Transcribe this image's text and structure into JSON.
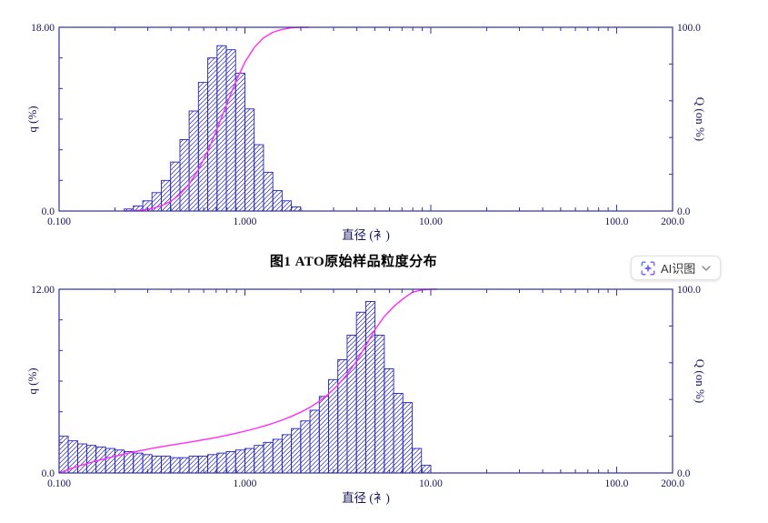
{
  "page": {
    "caption": "图1 ATO原始样品粒度分布",
    "ai_button": {
      "label": "AI识图",
      "icon": "ai-sparkle-scan-icon",
      "chevron": "chevron-down-icon"
    }
  },
  "colors": {
    "axis": "#3030a8",
    "bar": "#2424c0",
    "curve": "#ff2ef2",
    "text": "#14145a",
    "caption": "#000000",
    "ai_icon_start": "#3d7bfd",
    "ai_icon_end": "#a044ff"
  },
  "chart_data": [
    {
      "type": "bar",
      "subtype": "histogram-with-cumulative-curve",
      "title": "",
      "xlabel": "直径 (衤)",
      "ylabel_left": "q (%)",
      "ylabel_right": "Q (on %)",
      "x_scale": "log",
      "grid": false,
      "x_range": [
        0.1,
        200
      ],
      "y_left_range": [
        0,
        18
      ],
      "y_right_range": [
        0,
        100
      ],
      "y_left_minor_step": 3,
      "y_right_minor_step": 20,
      "x_tick_labels": [
        {
          "v": 0.1,
          "label": "0.100"
        },
        {
          "v": 1,
          "label": "1.000"
        },
        {
          "v": 10,
          "label": "10.00"
        },
        {
          "v": 100,
          "label": "100.0"
        },
        {
          "v": 200,
          "label": "200.0"
        }
      ],
      "y_left_tick_labels": [
        {
          "v": 18,
          "label": "18.00"
        },
        {
          "v": 0,
          "label": "0.0"
        }
      ],
      "y_right_tick_labels": [
        {
          "v": 100,
          "label": "100.0"
        },
        {
          "v": 0,
          "label": "0.0"
        }
      ],
      "bin_edges": [
        0.224,
        0.251,
        0.282,
        0.316,
        0.355,
        0.398,
        0.447,
        0.501,
        0.562,
        0.631,
        0.708,
        0.794,
        0.891,
        1.0,
        1.122,
        1.259,
        1.413,
        1.585,
        1.778,
        1.995
      ],
      "q_values": [
        0.2,
        0.5,
        1.0,
        1.8,
        3.0,
        4.8,
        7.0,
        9.8,
        12.6,
        15.0,
        16.2,
        15.8,
        13.5,
        10.0,
        6.5,
        3.8,
        2.0,
        1.0,
        0.4
      ],
      "cumulative": "computed-from-q-normalized-to-100",
      "curve_extend_to": 2.2
    },
    {
      "type": "bar",
      "subtype": "histogram-with-cumulative-curve",
      "title": "",
      "xlabel": "直径 (衤)",
      "ylabel_left": "q (%)",
      "ylabel_right": "Q (on %)",
      "x_scale": "log",
      "grid": false,
      "x_range": [
        0.1,
        200
      ],
      "y_left_range": [
        0,
        12
      ],
      "y_right_range": [
        0,
        100
      ],
      "y_left_minor_step": 2,
      "y_right_minor_step": 20,
      "x_tick_labels": [
        {
          "v": 0.1,
          "label": "0.100"
        },
        {
          "v": 1,
          "label": "1.000"
        },
        {
          "v": 10,
          "label": "10.00"
        },
        {
          "v": 100,
          "label": "100.0"
        },
        {
          "v": 200,
          "label": "200.0"
        }
      ],
      "y_left_tick_labels": [
        {
          "v": 12,
          "label": "12.00"
        },
        {
          "v": 0,
          "label": "0.0"
        }
      ],
      "y_right_tick_labels": [
        {
          "v": 100,
          "label": "100.0"
        },
        {
          "v": 0,
          "label": "0.0"
        }
      ],
      "bin_edges": [
        0.1,
        0.112,
        0.126,
        0.141,
        0.158,
        0.178,
        0.2,
        0.224,
        0.251,
        0.282,
        0.316,
        0.355,
        0.398,
        0.447,
        0.501,
        0.562,
        0.631,
        0.708,
        0.794,
        0.891,
        1.0,
        1.122,
        1.259,
        1.413,
        1.585,
        1.778,
        1.995,
        2.239,
        2.512,
        2.818,
        3.162,
        3.548,
        3.981,
        4.467,
        5.012,
        5.623,
        6.31,
        7.079,
        7.943,
        8.913,
        10.0
      ],
      "q_values": [
        2.4,
        2.1,
        1.9,
        1.8,
        1.7,
        1.6,
        1.5,
        1.4,
        1.3,
        1.2,
        1.1,
        1.1,
        1.0,
        1.0,
        1.1,
        1.1,
        1.2,
        1.3,
        1.4,
        1.5,
        1.6,
        1.8,
        2.0,
        2.2,
        2.5,
        2.9,
        3.4,
        4.1,
        5.0,
        6.1,
        7.4,
        9.0,
        10.5,
        11.2,
        9.0,
        6.8,
        5.2,
        4.6,
        1.6,
        0.5
      ],
      "cumulative": "computed-from-q-normalized-to-100",
      "curve_extend_to": 10.8
    }
  ]
}
